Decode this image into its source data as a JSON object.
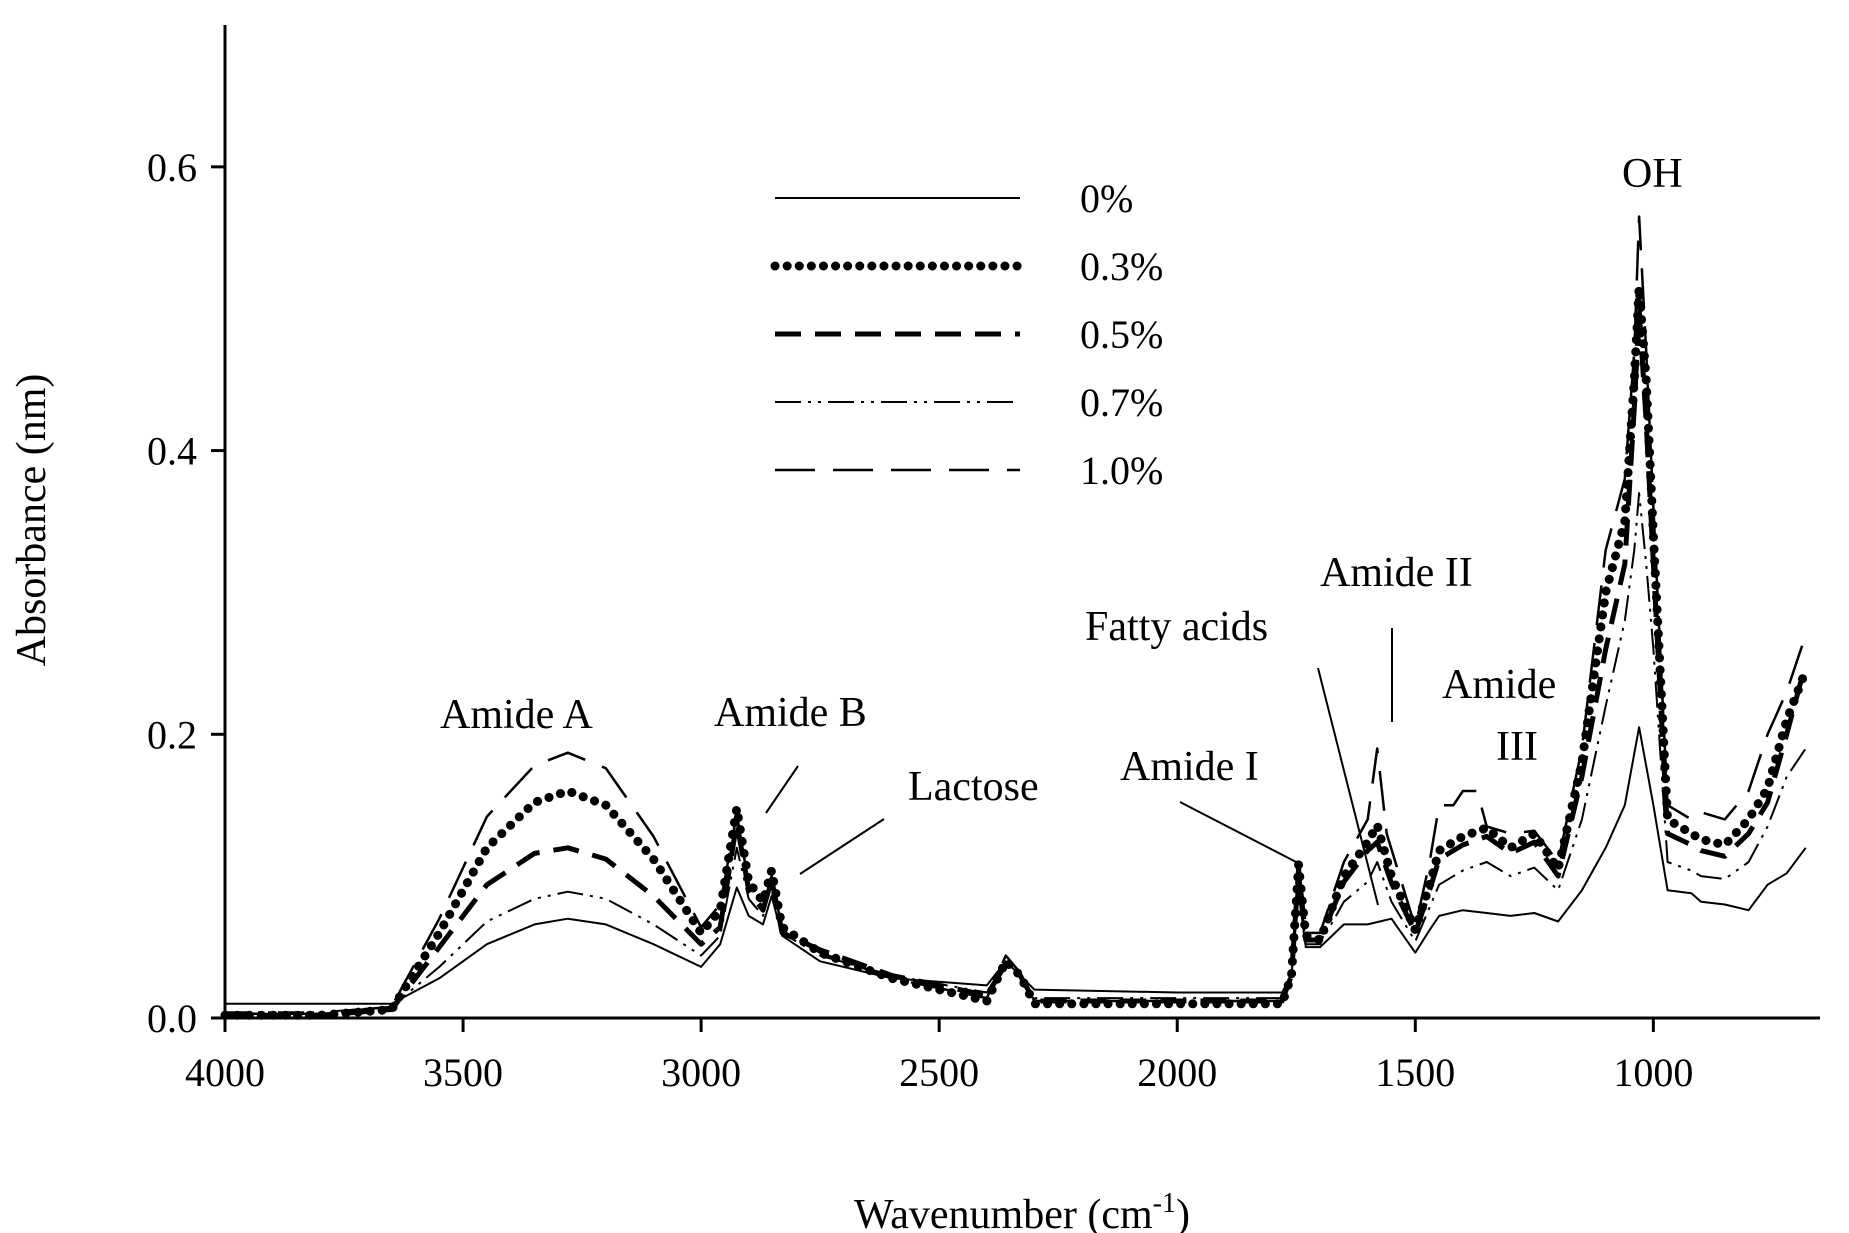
{
  "chart_data": {
    "type": "line",
    "xlabel": "Wavenumber (cm",
    "xlabel_sup": "-1",
    "xlabel_end": ")",
    "ylabel": "Absorbance (nm)",
    "xlim": [
      4000,
      650
    ],
    "x_reversed": true,
    "ylim": [
      0,
      0.7
    ],
    "xticks": [
      4000,
      3500,
      3000,
      2500,
      2000,
      1500,
      1000
    ],
    "xtick_labels": [
      "4000",
      "3500",
      "3000",
      "2500",
      "2000",
      "1500",
      "1000"
    ],
    "yticks": [
      0,
      0.2,
      0.4,
      0.6
    ],
    "ytick_labels": [
      "0.0",
      "0.2",
      "0.4",
      "0.6"
    ],
    "grid": false,
    "legend_position": "top-center",
    "series": [
      {
        "name": "0%",
        "style": "solid",
        "points": [
          [
            4000,
            0.01
          ],
          [
            3800,
            0.01
          ],
          [
            3650,
            0.01
          ],
          [
            3550,
            0.028
          ],
          [
            3450,
            0.052
          ],
          [
            3350,
            0.066
          ],
          [
            3280,
            0.07
          ],
          [
            3200,
            0.066
          ],
          [
            3100,
            0.052
          ],
          [
            3000,
            0.036
          ],
          [
            2960,
            0.052
          ],
          [
            2925,
            0.092
          ],
          [
            2900,
            0.072
          ],
          [
            2870,
            0.066
          ],
          [
            2852,
            0.086
          ],
          [
            2830,
            0.058
          ],
          [
            2750,
            0.04
          ],
          [
            2600,
            0.028
          ],
          [
            2400,
            0.023
          ],
          [
            2360,
            0.04
          ],
          [
            2330,
            0.03
          ],
          [
            2300,
            0.02
          ],
          [
            2000,
            0.018
          ],
          [
            1780,
            0.018
          ],
          [
            1760,
            0.03
          ],
          [
            1745,
            0.088
          ],
          [
            1730,
            0.05
          ],
          [
            1700,
            0.05
          ],
          [
            1650,
            0.066
          ],
          [
            1600,
            0.066
          ],
          [
            1550,
            0.07
          ],
          [
            1500,
            0.046
          ],
          [
            1470,
            0.062
          ],
          [
            1450,
            0.072
          ],
          [
            1400,
            0.076
          ],
          [
            1350,
            0.074
          ],
          [
            1300,
            0.072
          ],
          [
            1250,
            0.074
          ],
          [
            1200,
            0.068
          ],
          [
            1150,
            0.09
          ],
          [
            1100,
            0.12
          ],
          [
            1060,
            0.15
          ],
          [
            1030,
            0.205
          ],
          [
            1000,
            0.15
          ],
          [
            970,
            0.09
          ],
          [
            920,
            0.088
          ],
          [
            900,
            0.082
          ],
          [
            850,
            0.08
          ],
          [
            800,
            0.076
          ],
          [
            760,
            0.094
          ],
          [
            720,
            0.102
          ],
          [
            680,
            0.12
          ]
        ]
      },
      {
        "name": "0.3%",
        "style": "dotted",
        "points": [
          [
            4000,
            0.002
          ],
          [
            3800,
            0.002
          ],
          [
            3650,
            0.006
          ],
          [
            3550,
            0.06
          ],
          [
            3450,
            0.12
          ],
          [
            3350,
            0.152
          ],
          [
            3280,
            0.16
          ],
          [
            3200,
            0.15
          ],
          [
            3100,
            0.112
          ],
          [
            3000,
            0.06
          ],
          [
            2960,
            0.076
          ],
          [
            2925,
            0.148
          ],
          [
            2900,
            0.096
          ],
          [
            2870,
            0.082
          ],
          [
            2852,
            0.104
          ],
          [
            2830,
            0.064
          ],
          [
            2750,
            0.046
          ],
          [
            2600,
            0.028
          ],
          [
            2400,
            0.012
          ],
          [
            2360,
            0.04
          ],
          [
            2330,
            0.03
          ],
          [
            2300,
            0.01
          ],
          [
            2000,
            0.01
          ],
          [
            1780,
            0.01
          ],
          [
            1760,
            0.03
          ],
          [
            1745,
            0.108
          ],
          [
            1730,
            0.058
          ],
          [
            1700,
            0.055
          ],
          [
            1650,
            0.1
          ],
          [
            1600,
            0.124
          ],
          [
            1580,
            0.136
          ],
          [
            1550,
            0.1
          ],
          [
            1500,
            0.062
          ],
          [
            1470,
            0.094
          ],
          [
            1450,
            0.118
          ],
          [
            1400,
            0.128
          ],
          [
            1350,
            0.134
          ],
          [
            1300,
            0.12
          ],
          [
            1250,
            0.13
          ],
          [
            1200,
            0.105
          ],
          [
            1150,
            0.18
          ],
          [
            1100,
            0.3
          ],
          [
            1060,
            0.35
          ],
          [
            1040,
            0.45
          ],
          [
            1030,
            0.515
          ],
          [
            1015,
            0.45
          ],
          [
            1000,
            0.34
          ],
          [
            970,
            0.14
          ],
          [
            920,
            0.13
          ],
          [
            900,
            0.126
          ],
          [
            850,
            0.122
          ],
          [
            800,
            0.14
          ],
          [
            760,
            0.162
          ],
          [
            720,
            0.21
          ],
          [
            680,
            0.245
          ]
        ]
      },
      {
        "name": "0.5%",
        "style": "dashed",
        "points": [
          [
            4000,
            0.002
          ],
          [
            3800,
            0.002
          ],
          [
            3650,
            0.006
          ],
          [
            3550,
            0.05
          ],
          [
            3450,
            0.094
          ],
          [
            3350,
            0.116
          ],
          [
            3280,
            0.12
          ],
          [
            3200,
            0.112
          ],
          [
            3100,
            0.086
          ],
          [
            3000,
            0.052
          ],
          [
            2960,
            0.064
          ],
          [
            2925,
            0.138
          ],
          [
            2900,
            0.09
          ],
          [
            2870,
            0.076
          ],
          [
            2852,
            0.098
          ],
          [
            2830,
            0.06
          ],
          [
            2750,
            0.048
          ],
          [
            2600,
            0.03
          ],
          [
            2400,
            0.016
          ],
          [
            2360,
            0.038
          ],
          [
            2330,
            0.03
          ],
          [
            2300,
            0.012
          ],
          [
            2000,
            0.012
          ],
          [
            1780,
            0.012
          ],
          [
            1760,
            0.03
          ],
          [
            1745,
            0.105
          ],
          [
            1730,
            0.055
          ],
          [
            1700,
            0.055
          ],
          [
            1650,
            0.096
          ],
          [
            1600,
            0.118
          ],
          [
            1580,
            0.124
          ],
          [
            1550,
            0.095
          ],
          [
            1500,
            0.06
          ],
          [
            1470,
            0.09
          ],
          [
            1450,
            0.112
          ],
          [
            1400,
            0.122
          ],
          [
            1350,
            0.128
          ],
          [
            1300,
            0.116
          ],
          [
            1250,
            0.124
          ],
          [
            1200,
            0.1
          ],
          [
            1150,
            0.17
          ],
          [
            1100,
            0.26
          ],
          [
            1060,
            0.32
          ],
          [
            1040,
            0.43
          ],
          [
            1030,
            0.5
          ],
          [
            1015,
            0.42
          ],
          [
            1000,
            0.32
          ],
          [
            970,
            0.13
          ],
          [
            920,
            0.122
          ],
          [
            900,
            0.118
          ],
          [
            850,
            0.114
          ],
          [
            800,
            0.13
          ],
          [
            760,
            0.152
          ],
          [
            720,
            0.2
          ],
          [
            680,
            0.25
          ]
        ]
      },
      {
        "name": "0.7%",
        "style": "dash-dot-dot",
        "points": [
          [
            4000,
            0.004
          ],
          [
            3800,
            0.004
          ],
          [
            3650,
            0.008
          ],
          [
            3550,
            0.036
          ],
          [
            3450,
            0.068
          ],
          [
            3350,
            0.084
          ],
          [
            3280,
            0.089
          ],
          [
            3200,
            0.084
          ],
          [
            3100,
            0.066
          ],
          [
            3000,
            0.044
          ],
          [
            2960,
            0.058
          ],
          [
            2925,
            0.12
          ],
          [
            2900,
            0.084
          ],
          [
            2870,
            0.072
          ],
          [
            2852,
            0.094
          ],
          [
            2830,
            0.06
          ],
          [
            2750,
            0.044
          ],
          [
            2600,
            0.03
          ],
          [
            2400,
            0.018
          ],
          [
            2360,
            0.04
          ],
          [
            2330,
            0.03
          ],
          [
            2300,
            0.014
          ],
          [
            2000,
            0.014
          ],
          [
            1780,
            0.014
          ],
          [
            1760,
            0.03
          ],
          [
            1745,
            0.1
          ],
          [
            1730,
            0.052
          ],
          [
            1700,
            0.052
          ],
          [
            1650,
            0.082
          ],
          [
            1600,
            0.096
          ],
          [
            1580,
            0.11
          ],
          [
            1550,
            0.082
          ],
          [
            1500,
            0.054
          ],
          [
            1470,
            0.078
          ],
          [
            1450,
            0.094
          ],
          [
            1400,
            0.104
          ],
          [
            1350,
            0.11
          ],
          [
            1300,
            0.1
          ],
          [
            1250,
            0.106
          ],
          [
            1200,
            0.09
          ],
          [
            1150,
            0.14
          ],
          [
            1100,
            0.22
          ],
          [
            1060,
            0.28
          ],
          [
            1040,
            0.33
          ],
          [
            1030,
            0.37
          ],
          [
            1015,
            0.32
          ],
          [
            1000,
            0.26
          ],
          [
            970,
            0.11
          ],
          [
            920,
            0.104
          ],
          [
            900,
            0.1
          ],
          [
            850,
            0.098
          ],
          [
            800,
            0.11
          ],
          [
            760,
            0.135
          ],
          [
            720,
            0.17
          ],
          [
            680,
            0.19
          ]
        ]
      },
      {
        "name": "1.0%",
        "style": "long-dash",
        "points": [
          [
            4000,
            0.003
          ],
          [
            3800,
            0.003
          ],
          [
            3650,
            0.008
          ],
          [
            3550,
            0.07
          ],
          [
            3450,
            0.142
          ],
          [
            3350,
            0.178
          ],
          [
            3280,
            0.187
          ],
          [
            3200,
            0.176
          ],
          [
            3100,
            0.128
          ],
          [
            3000,
            0.064
          ],
          [
            2960,
            0.08
          ],
          [
            2925,
            0.144
          ],
          [
            2900,
            0.094
          ],
          [
            2870,
            0.078
          ],
          [
            2852,
            0.1
          ],
          [
            2830,
            0.062
          ],
          [
            2750,
            0.046
          ],
          [
            2600,
            0.028
          ],
          [
            2400,
            0.014
          ],
          [
            2360,
            0.044
          ],
          [
            2330,
            0.032
          ],
          [
            2300,
            0.012
          ],
          [
            2000,
            0.012
          ],
          [
            1780,
            0.012
          ],
          [
            1760,
            0.03
          ],
          [
            1745,
            0.11
          ],
          [
            1730,
            0.06
          ],
          [
            1700,
            0.06
          ],
          [
            1650,
            0.11
          ],
          [
            1600,
            0.14
          ],
          [
            1580,
            0.19
          ],
          [
            1560,
            0.13
          ],
          [
            1500,
            0.064
          ],
          [
            1470,
            0.11
          ],
          [
            1450,
            0.15
          ],
          [
            1420,
            0.15
          ],
          [
            1400,
            0.16
          ],
          [
            1370,
            0.16
          ],
          [
            1350,
            0.135
          ],
          [
            1300,
            0.13
          ],
          [
            1250,
            0.132
          ],
          [
            1200,
            0.11
          ],
          [
            1150,
            0.19
          ],
          [
            1100,
            0.33
          ],
          [
            1060,
            0.38
          ],
          [
            1040,
            0.47
          ],
          [
            1030,
            0.565
          ],
          [
            1015,
            0.47
          ],
          [
            1000,
            0.36
          ],
          [
            970,
            0.15
          ],
          [
            920,
            0.14
          ],
          [
            900,
            0.145
          ],
          [
            850,
            0.14
          ],
          [
            800,
            0.16
          ],
          [
            760,
            0.2
          ],
          [
            720,
            0.23
          ],
          [
            680,
            0.27
          ]
        ]
      }
    ],
    "annotations": [
      {
        "text": "Amide A"
      },
      {
        "text": "Amide B"
      },
      {
        "text": "Lactose"
      },
      {
        "text": "Amide I"
      },
      {
        "text": "Fatty acids"
      },
      {
        "text": "Amide II"
      },
      {
        "text": "Amide"
      },
      {
        "text": "III"
      },
      {
        "text": "OH"
      }
    ]
  }
}
